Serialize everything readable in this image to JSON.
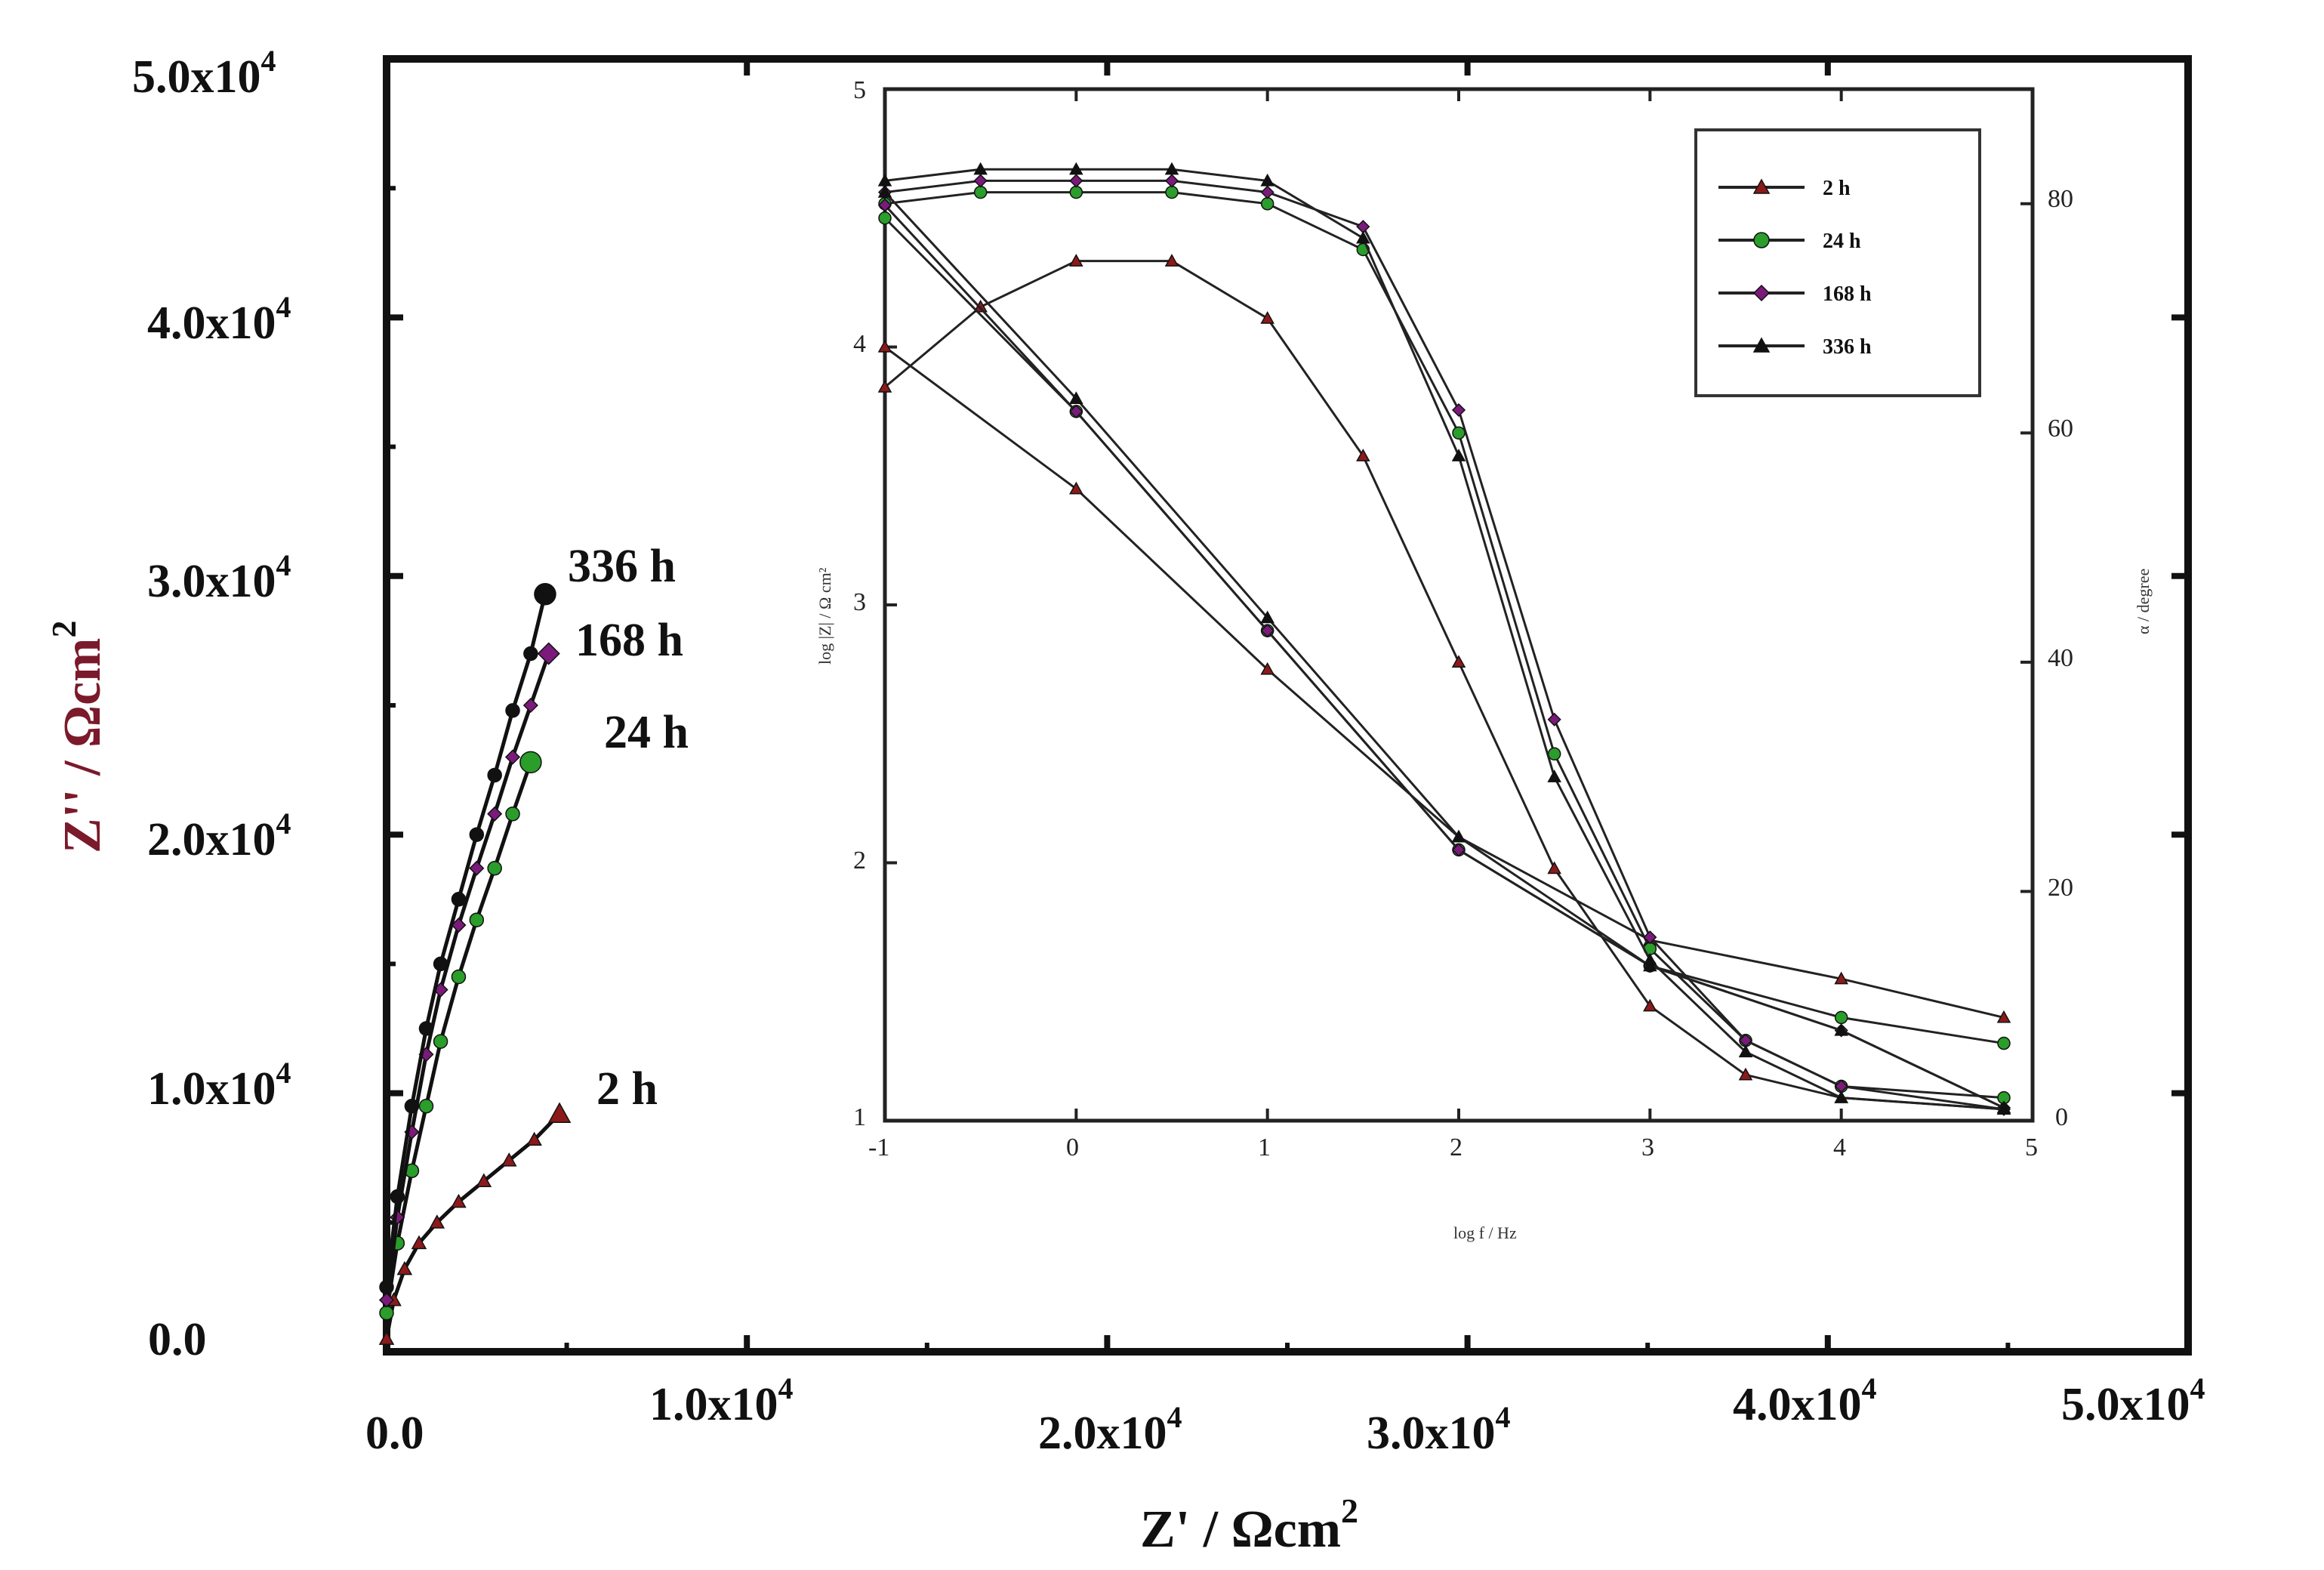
{
  "chart_data": [
    {
      "type": "scatter",
      "title": "",
      "xlabel": "Z' / Ωcm",
      "xlabel_sup": "2",
      "ylabel": "Z'' / Ωcm",
      "ylabel_sup": "2",
      "xlim": [
        0,
        50000
      ],
      "ylim": [
        0,
        50000
      ],
      "x_ticks": [
        {
          "value": 0,
          "label": "0.0"
        },
        {
          "value": 10000,
          "label": "1.0x10",
          "sup": "4"
        },
        {
          "value": 20000,
          "label": "2.0x10",
          "sup": "4"
        },
        {
          "value": 30000,
          "label": "3.0x10",
          "sup": "4"
        },
        {
          "value": 40000,
          "label": "4.0x10",
          "sup": "4"
        },
        {
          "value": 50000,
          "label": "5.0x10",
          "sup": "4"
        }
      ],
      "y_ticks": [
        {
          "value": 0,
          "label": "0.0"
        },
        {
          "value": 10000,
          "label": "1.0x10",
          "sup": "4"
        },
        {
          "value": 20000,
          "label": "2.0x10",
          "sup": "4"
        },
        {
          "value": 30000,
          "label": "3.0x10",
          "sup": "4"
        },
        {
          "value": 40000,
          "label": "4.0x10",
          "sup": "4"
        },
        {
          "value": 50000,
          "label": "5.0x10",
          "sup": "4"
        }
      ],
      "series": [
        {
          "name": "2 h",
          "label": "2 h",
          "color": "#8b1a1a",
          "marker": "triangle",
          "x": [
            0,
            200,
            500,
            900,
            1400,
            2000,
            2700,
            3400,
            4100,
            4800
          ],
          "y": [
            500,
            2000,
            3200,
            4200,
            5000,
            5800,
            6600,
            7400,
            8200,
            9200
          ]
        },
        {
          "name": "24 h",
          "label": "24 h",
          "color": "#2a9d2a",
          "marker": "circle",
          "x": [
            0,
            300,
            700,
            1100,
            1500,
            2000,
            2500,
            3000,
            3500,
            4000
          ],
          "y": [
            1500,
            4200,
            7000,
            9500,
            12000,
            14500,
            16700,
            18700,
            20800,
            22800
          ]
        },
        {
          "name": "168 h",
          "label": "168 h",
          "color": "#7a1a7a",
          "marker": "diamond",
          "x": [
            0,
            300,
            700,
            1100,
            1500,
            2000,
            2500,
            3000,
            3500,
            4000,
            4500
          ],
          "y": [
            2000,
            5200,
            8500,
            11500,
            14000,
            16500,
            18700,
            20800,
            23000,
            25000,
            27000
          ]
        },
        {
          "name": "336 h",
          "label": "336 h",
          "color": "#111111",
          "marker": "circle",
          "x": [
            0,
            300,
            700,
            1100,
            1500,
            2000,
            2500,
            3000,
            3500,
            4000,
            4400
          ],
          "y": [
            2500,
            6000,
            9500,
            12500,
            15000,
            17500,
            20000,
            22300,
            24800,
            27000,
            29300
          ]
        }
      ]
    },
    {
      "type": "line",
      "title": "",
      "xlabel": "log f / Hz",
      "ylabel": "log |Z| / Ω cm²",
      "y2label": "α / degree",
      "xlim": [
        -1,
        5
      ],
      "ylim": [
        1,
        5
      ],
      "y2lim": [
        0,
        90
      ],
      "x_ticks": [
        "-1",
        "0",
        "1",
        "2",
        "3",
        "4",
        "5"
      ],
      "y_ticks": [
        "1",
        "2",
        "3",
        "4",
        "5"
      ],
      "y2_ticks": [
        "0",
        "20",
        "40",
        "60",
        "80"
      ],
      "legend_position": "top-right",
      "series": [
        {
          "name": "2 h",
          "color": "#8b1a1a",
          "marker": "triangle",
          "modulus": {
            "x": [
              -1,
              0,
              1,
              2,
              3,
              4,
              4.85
            ],
            "y": [
              4.0,
              3.45,
              2.75,
              2.1,
              1.7,
              1.55,
              1.4
            ]
          },
          "phase": {
            "x": [
              -1,
              -0.5,
              0,
              0.5,
              1,
              1.5,
              2,
              2.5,
              3,
              3.5,
              4,
              4.85
            ],
            "y": [
              64,
              71,
              75,
              75,
              70,
              58,
              40,
              22,
              10,
              4,
              2,
              1
            ]
          }
        },
        {
          "name": "24 h",
          "color": "#2a9d2a",
          "marker": "circle",
          "modulus": {
            "x": [
              -1,
              0,
              1,
              2,
              3,
              4,
              4.85
            ],
            "y": [
              4.5,
              3.75,
              2.9,
              2.05,
              1.6,
              1.4,
              1.3
            ]
          },
          "phase": {
            "x": [
              -1,
              -0.5,
              0,
              0.5,
              1,
              1.5,
              2,
              2.5,
              3,
              3.5,
              4,
              4.85
            ],
            "y": [
              80,
              81,
              81,
              81,
              80,
              76,
              60,
              32,
              15,
              7,
              3,
              2
            ]
          }
        },
        {
          "name": "168 h",
          "color": "#7a1a7a",
          "marker": "diamond",
          "modulus": {
            "x": [
              -1,
              0,
              1,
              2,
              3,
              4,
              4.85
            ],
            "y": [
              4.55,
              3.75,
              2.9,
              2.05,
              1.6,
              1.35,
              1.05
            ]
          },
          "phase": {
            "x": [
              -1,
              -0.5,
              0,
              0.5,
              1,
              1.5,
              2,
              2.5,
              3,
              3.5,
              4,
              4.85
            ],
            "y": [
              81,
              82,
              82,
              82,
              81,
              78,
              62,
              35,
              16,
              7,
              3,
              1
            ]
          }
        },
        {
          "name": "336 h",
          "color": "#111111",
          "marker": "triangle",
          "modulus": {
            "x": [
              -1,
              0,
              1,
              2,
              3,
              4,
              4.85
            ],
            "y": [
              4.6,
              3.8,
              2.95,
              2.1,
              1.6,
              1.35,
              1.05
            ]
          },
          "phase": {
            "x": [
              -1,
              -0.5,
              0,
              0.5,
              1,
              1.5,
              2,
              2.5,
              3,
              3.5,
              4,
              4.85
            ],
            "y": [
              82,
              83,
              83,
              83,
              82,
              77,
              58,
              30,
              14,
              6,
              2,
              1
            ]
          }
        }
      ]
    }
  ]
}
